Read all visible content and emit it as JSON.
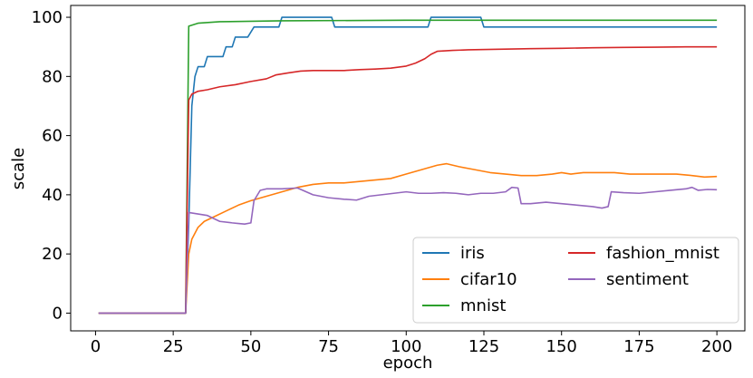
{
  "chart_data": {
    "type": "line",
    "xlabel": "epoch",
    "ylabel": "scale",
    "xlim": [
      -8,
      209
    ],
    "ylim": [
      -6,
      104
    ],
    "xticks": [
      0,
      25,
      50,
      75,
      100,
      125,
      150,
      175,
      200
    ],
    "yticks": [
      0,
      20,
      40,
      60,
      80,
      100
    ],
    "grid": false,
    "legend": {
      "placement": "lower-right",
      "columns": 2
    },
    "series": [
      {
        "name": "iris",
        "color": "#1f77b4",
        "points": [
          [
            1,
            0
          ],
          [
            29,
            0
          ],
          [
            30,
            30
          ],
          [
            31,
            70
          ],
          [
            32,
            80
          ],
          [
            33,
            83.3
          ],
          [
            35,
            83.3
          ],
          [
            36,
            86.7
          ],
          [
            41,
            86.7
          ],
          [
            42,
            90
          ],
          [
            44,
            90
          ],
          [
            45,
            93.3
          ],
          [
            49,
            93.3
          ],
          [
            51,
            96.7
          ],
          [
            59,
            96.7
          ],
          [
            60,
            100
          ],
          [
            76,
            100
          ],
          [
            77,
            96.7
          ],
          [
            107,
            96.7
          ],
          [
            108,
            100
          ],
          [
            124,
            100
          ],
          [
            125,
            96.7
          ],
          [
            200,
            96.7
          ]
        ]
      },
      {
        "name": "cifar10",
        "color": "#ff7f0e",
        "points": [
          [
            1,
            0
          ],
          [
            29,
            0
          ],
          [
            30,
            20
          ],
          [
            31,
            25
          ],
          [
            33,
            29
          ],
          [
            35,
            31
          ],
          [
            38,
            32.5
          ],
          [
            42,
            34.5
          ],
          [
            46,
            36.5
          ],
          [
            50,
            38
          ],
          [
            55,
            39.5
          ],
          [
            60,
            41
          ],
          [
            65,
            42.5
          ],
          [
            70,
            43.5
          ],
          [
            75,
            44
          ],
          [
            80,
            44
          ],
          [
            85,
            44.5
          ],
          [
            90,
            45
          ],
          [
            95,
            45.5
          ],
          [
            100,
            47
          ],
          [
            105,
            48.5
          ],
          [
            110,
            50
          ],
          [
            113,
            50.5
          ],
          [
            117,
            49.5
          ],
          [
            122,
            48.5
          ],
          [
            127,
            47.5
          ],
          [
            132,
            47
          ],
          [
            137,
            46.5
          ],
          [
            142,
            46.5
          ],
          [
            147,
            47
          ],
          [
            150,
            47.5
          ],
          [
            153,
            47
          ],
          [
            157,
            47.5
          ],
          [
            162,
            47.5
          ],
          [
            167,
            47.5
          ],
          [
            172,
            47
          ],
          [
            177,
            47
          ],
          [
            182,
            47
          ],
          [
            187,
            47
          ],
          [
            192,
            46.5
          ],
          [
            196,
            46
          ],
          [
            200,
            46.2
          ]
        ]
      },
      {
        "name": "mnist",
        "color": "#2ca02c",
        "points": [
          [
            1,
            0
          ],
          [
            29,
            0
          ],
          [
            30,
            97
          ],
          [
            33,
            98
          ],
          [
            40,
            98.5
          ],
          [
            60,
            98.8
          ],
          [
            100,
            99
          ],
          [
            150,
            99
          ],
          [
            200,
            99
          ]
        ]
      },
      {
        "name": "fashion_mnist",
        "color": "#d62728",
        "points": [
          [
            1,
            0
          ],
          [
            29,
            0
          ],
          [
            30,
            72
          ],
          [
            31,
            74
          ],
          [
            33,
            75
          ],
          [
            36,
            75.5
          ],
          [
            40,
            76.5
          ],
          [
            45,
            77.2
          ],
          [
            50,
            78.3
          ],
          [
            55,
            79.2
          ],
          [
            58,
            80.5
          ],
          [
            62,
            81.2
          ],
          [
            66,
            81.8
          ],
          [
            70,
            82
          ],
          [
            75,
            82
          ],
          [
            80,
            82
          ],
          [
            85,
            82.3
          ],
          [
            90,
            82.5
          ],
          [
            95,
            82.8
          ],
          [
            100,
            83.5
          ],
          [
            103,
            84.5
          ],
          [
            106,
            86
          ],
          [
            108,
            87.5
          ],
          [
            110,
            88.5
          ],
          [
            115,
            88.8
          ],
          [
            120,
            89
          ],
          [
            130,
            89.2
          ],
          [
            140,
            89.4
          ],
          [
            150,
            89.5
          ],
          [
            160,
            89.7
          ],
          [
            170,
            89.8
          ],
          [
            180,
            89.9
          ],
          [
            190,
            90
          ],
          [
            200,
            90
          ]
        ]
      },
      {
        "name": "sentiment",
        "color": "#9467bd",
        "points": [
          [
            1,
            0
          ],
          [
            29,
            0
          ],
          [
            30,
            34
          ],
          [
            33,
            33.5
          ],
          [
            36,
            33
          ],
          [
            38,
            32
          ],
          [
            40,
            31
          ],
          [
            44,
            30.5
          ],
          [
            46,
            30.3
          ],
          [
            48,
            30.1
          ],
          [
            50,
            30.5
          ],
          [
            51,
            38
          ],
          [
            53,
            41.5
          ],
          [
            55,
            42
          ],
          [
            60,
            42
          ],
          [
            65,
            42.3
          ],
          [
            70,
            40
          ],
          [
            75,
            39
          ],
          [
            80,
            38.5
          ],
          [
            84,
            38.2
          ],
          [
            88,
            39.5
          ],
          [
            92,
            40
          ],
          [
            96,
            40.5
          ],
          [
            100,
            41
          ],
          [
            104,
            40.5
          ],
          [
            108,
            40.5
          ],
          [
            112,
            40.7
          ],
          [
            116,
            40.5
          ],
          [
            120,
            40
          ],
          [
            124,
            40.5
          ],
          [
            128,
            40.5
          ],
          [
            132,
            41
          ],
          [
            134,
            42.5
          ],
          [
            136,
            42.3
          ],
          [
            137,
            37
          ],
          [
            140,
            37
          ],
          [
            145,
            37.5
          ],
          [
            150,
            37
          ],
          [
            155,
            36.5
          ],
          [
            160,
            36
          ],
          [
            163,
            35.5
          ],
          [
            165,
            36
          ],
          [
            166,
            41
          ],
          [
            170,
            40.7
          ],
          [
            175,
            40.5
          ],
          [
            180,
            41
          ],
          [
            185,
            41.5
          ],
          [
            190,
            42
          ],
          [
            192,
            42.5
          ],
          [
            194,
            41.5
          ],
          [
            197,
            41.8
          ],
          [
            200,
            41.7
          ]
        ]
      }
    ]
  }
}
